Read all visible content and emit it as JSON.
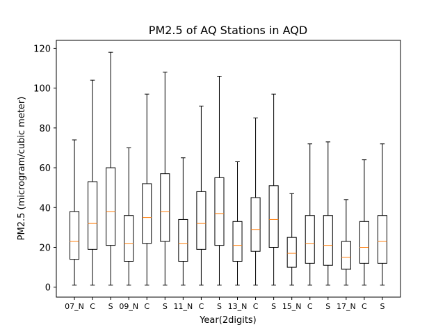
{
  "chart_data": {
    "type": "box",
    "title": "PM2.5 of AQ Stations in AQD",
    "xlabel": "Year(2digits)",
    "ylabel": "PM2.5 (microgram/cubic meter)",
    "ylim": [
      -5,
      124
    ],
    "yticks": [
      0,
      20,
      40,
      60,
      80,
      100,
      120
    ],
    "grid": false,
    "categories": [
      "07_N",
      "C",
      "S",
      "09_N",
      "C",
      "S",
      "11_N",
      "C",
      "S",
      "13_N",
      "C",
      "S",
      "15_N",
      "C",
      "S",
      "17_N",
      "C",
      "S"
    ],
    "boxes": [
      {
        "whislo": 1,
        "q1": 14,
        "med": 23,
        "q3": 38,
        "whishi": 74
      },
      {
        "whislo": 1,
        "q1": 19,
        "med": 32,
        "q3": 53,
        "whishi": 104
      },
      {
        "whislo": 1,
        "q1": 21,
        "med": 38,
        "q3": 60,
        "whishi": 118
      },
      {
        "whislo": 1,
        "q1": 13,
        "med": 22,
        "q3": 36,
        "whishi": 70
      },
      {
        "whislo": 1,
        "q1": 22,
        "med": 35,
        "q3": 52,
        "whishi": 97
      },
      {
        "whislo": 1,
        "q1": 23,
        "med": 38,
        "q3": 57,
        "whishi": 108
      },
      {
        "whislo": 1,
        "q1": 13,
        "med": 22,
        "q3": 34,
        "whishi": 65
      },
      {
        "whislo": 1,
        "q1": 19,
        "med": 32,
        "q3": 48,
        "whishi": 91
      },
      {
        "whislo": 1,
        "q1": 21,
        "med": 37,
        "q3": 55,
        "whishi": 106
      },
      {
        "whislo": 1,
        "q1": 13,
        "med": 21,
        "q3": 33,
        "whishi": 63
      },
      {
        "whislo": 1,
        "q1": 18,
        "med": 29,
        "q3": 45,
        "whishi": 85
      },
      {
        "whislo": 1,
        "q1": 20,
        "med": 34,
        "q3": 51,
        "whishi": 97
      },
      {
        "whislo": 1,
        "q1": 10,
        "med": 17,
        "q3": 25,
        "whishi": 47
      },
      {
        "whislo": 1,
        "q1": 12,
        "med": 22,
        "q3": 36,
        "whishi": 72
      },
      {
        "whislo": 1,
        "q1": 11,
        "med": 21,
        "q3": 36,
        "whishi": 73
      },
      {
        "whislo": 1,
        "q1": 9,
        "med": 15,
        "q3": 23,
        "whishi": 44
      },
      {
        "whislo": 1,
        "q1": 12,
        "med": 20,
        "q3": 33,
        "whishi": 64
      },
      {
        "whislo": 1,
        "q1": 12,
        "med": 23,
        "q3": 36,
        "whishi": 72
      }
    ],
    "colors": {
      "box": "#000000",
      "median": "#ff7f0e"
    }
  }
}
